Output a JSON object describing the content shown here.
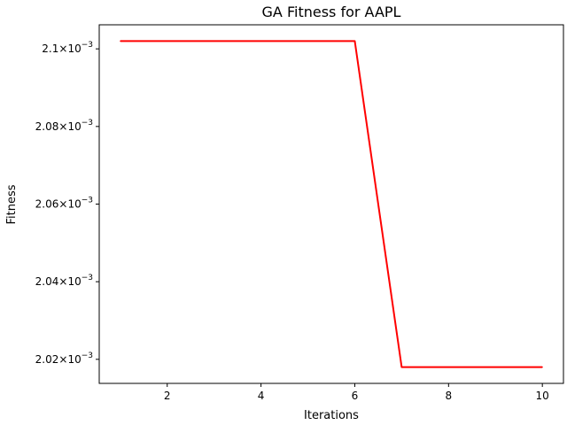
{
  "chart_data": {
    "type": "line",
    "title": "GA Fitness for AAPL",
    "xlabel": "Iterations",
    "ylabel": "Fitness",
    "x": [
      1,
      2,
      3,
      4,
      5,
      6,
      7,
      8,
      9,
      10
    ],
    "series": [
      {
        "color": "#ff0000",
        "values": [
          0.002102,
          0.002102,
          0.002102,
          0.002102,
          0.002102,
          0.002102,
          0.002018,
          0.002018,
          0.002018,
          0.002018
        ]
      }
    ],
    "xlim": [
      0.55,
      10.45
    ],
    "ylim": [
      0.0020138,
      0.0021062
    ],
    "grid": false,
    "xticks": [
      {
        "value": 2,
        "label": "2"
      },
      {
        "value": 4,
        "label": "4"
      },
      {
        "value": 6,
        "label": "6"
      },
      {
        "value": 8,
        "label": "8"
      },
      {
        "value": 10,
        "label": "10"
      }
    ],
    "yticks": [
      {
        "value": 0.00202,
        "mantissa": "2.02",
        "times": "×",
        "base": "10",
        "exponent": "−3"
      },
      {
        "value": 0.00204,
        "mantissa": "2.04",
        "times": "×",
        "base": "10",
        "exponent": "−3"
      },
      {
        "value": 0.00206,
        "mantissa": "2.06",
        "times": "×",
        "base": "10",
        "exponent": "−3"
      },
      {
        "value": 0.00208,
        "mantissa": "2.08",
        "times": "×",
        "base": "10",
        "exponent": "−3"
      },
      {
        "value": 0.0021,
        "mantissa": "2.1",
        "times": "×",
        "base": "10",
        "exponent": "−3"
      }
    ]
  }
}
